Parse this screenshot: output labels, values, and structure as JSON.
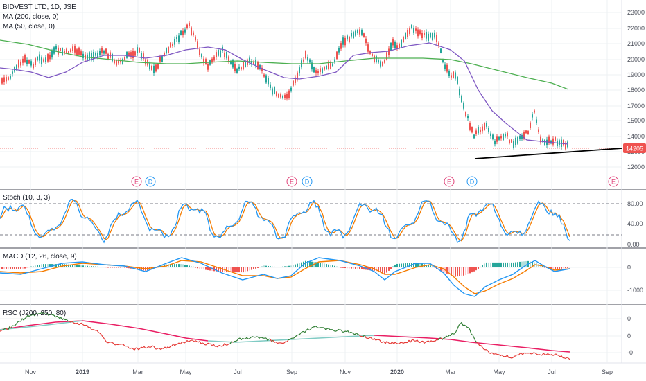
{
  "header": {
    "symbol": "BIDVEST LTD, 1D, JSE",
    "ma200": "MA (200, close, 0)",
    "ma50": "MA (50, close, 0)"
  },
  "panes": {
    "stoch": "Stoch (10, 3, 3)",
    "macd": "MACD (12, 26, close, 9)",
    "rsc": "RSC (J200, 250, 80)"
  },
  "price_axis": [
    "23000",
    "22000",
    "21000",
    "20000",
    "19000",
    "18000",
    "17000",
    "15000",
    "14000",
    "13000",
    "12000"
  ],
  "last_price": "14205",
  "stoch_axis": [
    "80.00",
    "40.00",
    "0.00"
  ],
  "macd_axis": [
    "0",
    "-1000"
  ],
  "rsc_axis": [
    "0",
    "0",
    "-0"
  ],
  "x_axis": [
    "Nov",
    "2019",
    "Mar",
    "May",
    "Jul",
    "Sep",
    "Nov",
    "2020",
    "Mar",
    "May",
    "Jul",
    "Sep"
  ],
  "events": [
    {
      "t": "E",
      "c": "#e0457b"
    },
    {
      "t": "D",
      "c": "#2196f3"
    },
    {
      "t": "E",
      "c": "#e0457b"
    },
    {
      "t": "D",
      "c": "#2196f3"
    },
    {
      "t": "E",
      "c": "#e0457b"
    },
    {
      "t": "D",
      "c": "#2196f3"
    },
    {
      "t": "E",
      "c": "#e0457b"
    }
  ],
  "colors": {
    "up": "#26a69a",
    "down": "#ef5350",
    "ma200": "#4caf50",
    "ma50": "#7e57c2",
    "stoch_k": "#2196f3",
    "stoch_d": "#f57c00",
    "macd": "#2196f3",
    "signal": "#f57c00",
    "rsc_up": "#2e7d32",
    "rsc_down": "#e53935",
    "rsc_ma_a": "#80cbc4",
    "rsc_ma_b": "#e91e63",
    "grid": "#eef0f3",
    "border": "#434651"
  },
  "chart_data": {
    "type": "line",
    "series": [
      {
        "name": "BIDVEST LTD, 1D, JSE",
        "x": [
          "Oct 2018",
          "Nov 2018",
          "Dec 2018",
          "2019",
          "Feb 2019",
          "Mar 2019",
          "Apr 2019",
          "May 2019",
          "Jun 2019",
          "Jul 2019",
          "Aug 2019",
          "Sep 2019",
          "Oct 2019",
          "Nov 2019",
          "Dec 2019",
          "2020",
          "Feb 2020",
          "Mar 2020",
          "Apr 2020",
          "May 2020",
          "Jun 2020",
          "Jul 2020"
        ],
        "values": [
          18500,
          19200,
          20000,
          20400,
          20200,
          19800,
          20100,
          22000,
          20300,
          20500,
          19500,
          17500,
          19500,
          21000,
          21800,
          21500,
          21400,
          15500,
          14200,
          14800,
          16000,
          14205
        ]
      },
      {
        "name": "MA (200, close, 0)",
        "x": [
          "Oct 2018",
          "2019",
          "Mar 2019",
          "May 2019",
          "Jul 2019",
          "Sep 2019",
          "Nov 2019",
          "2020",
          "Mar 2020",
          "May 2020",
          "Jul 2020"
        ],
        "values": [
          21300,
          20600,
          20000,
          19800,
          20100,
          19900,
          20100,
          20500,
          20200,
          19200,
          18100
        ]
      },
      {
        "name": "MA (50, close, 0)",
        "x": [
          "Oct 2018",
          "Nov 2018",
          "2019",
          "Mar 2019",
          "May 2019",
          "Jul 2019",
          "Sep 2019",
          "Nov 2019",
          "2020",
          "Mar 2020",
          "May 2020",
          "Jul 2020"
        ],
        "values": [
          19700,
          19200,
          20200,
          20100,
          20900,
          20300,
          19000,
          19300,
          21000,
          20800,
          15500,
          14400
        ]
      }
    ],
    "ylim": [
      12000,
      23500
    ],
    "last_value": 14205
  }
}
